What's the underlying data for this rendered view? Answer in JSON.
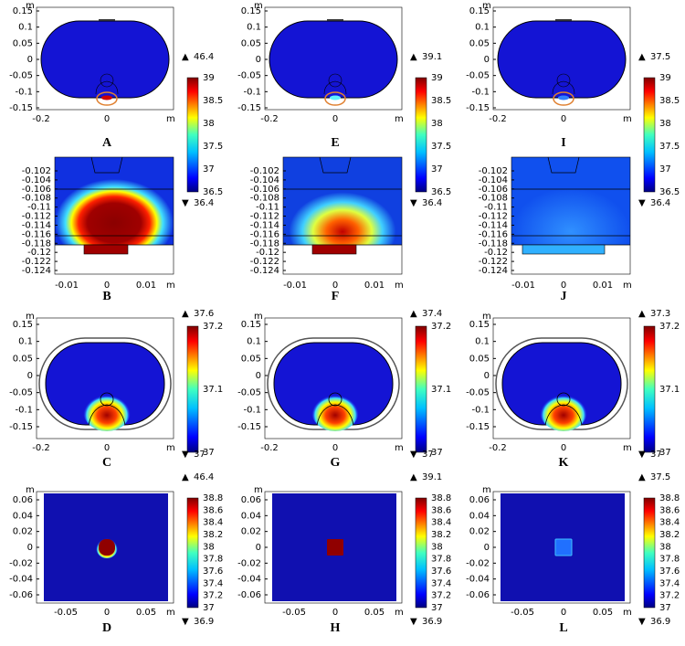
{
  "unit": "m",
  "rows": [
    {
      "xticks": [
        "-0.2",
        "0"
      ],
      "yticks": [
        "0.15",
        "0.1",
        "0.05",
        "0",
        "-0.05",
        "-0.1",
        "-0.15"
      ],
      "colorbar": [
        "39",
        "38.5",
        "38",
        "37.5",
        "37",
        "36.5"
      ]
    },
    {
      "xticks": [
        "-0.01",
        "0",
        "0.01"
      ],
      "yticks": [
        "-0.102",
        "-0.104",
        "-0.106",
        "-0.108",
        "-0.11",
        "-0.112",
        "-0.114",
        "-0.116",
        "-0.118",
        "-0.12",
        "-0.122",
        "-0.124"
      ]
    },
    {
      "xticks": [
        "-0.2",
        "0"
      ],
      "yticks": [
        "0.15",
        "0.1",
        "0.05",
        "0",
        "-0.05",
        "-0.1",
        "-0.15"
      ],
      "colorbar": [
        "37.2",
        "37.1",
        "37"
      ]
    },
    {
      "xticks": [
        "-0.05",
        "0",
        "0.05"
      ],
      "yticks": [
        "0.06",
        "0.04",
        "0.02",
        "0",
        "-0.02",
        "-0.04",
        "-0.06"
      ],
      "colorbar": [
        "38.8",
        "38.6",
        "38.4",
        "38.2",
        "38",
        "37.8",
        "37.6",
        "37.4",
        "37.2",
        "37"
      ]
    }
  ],
  "columns": [
    {
      "labels": [
        "A",
        "B",
        "C",
        "D"
      ],
      "max": [
        "46.4",
        null,
        "37.6",
        "46.4"
      ],
      "min": [
        "36.4",
        null,
        "37",
        "36.9"
      ]
    },
    {
      "labels": [
        "E",
        "F",
        "G",
        "H"
      ],
      "max": [
        "39.1",
        null,
        "37.4",
        "39.1"
      ],
      "min": [
        "36.4",
        null,
        "37",
        "36.9"
      ]
    },
    {
      "labels": [
        "I",
        "J",
        "K",
        "L"
      ],
      "max": [
        "37.5",
        null,
        "37.3",
        "37.5"
      ],
      "min": [
        "36.4",
        null,
        "37",
        "36.9"
      ]
    }
  ],
  "max_symbol": "▲",
  "min_symbol": "▼"
}
